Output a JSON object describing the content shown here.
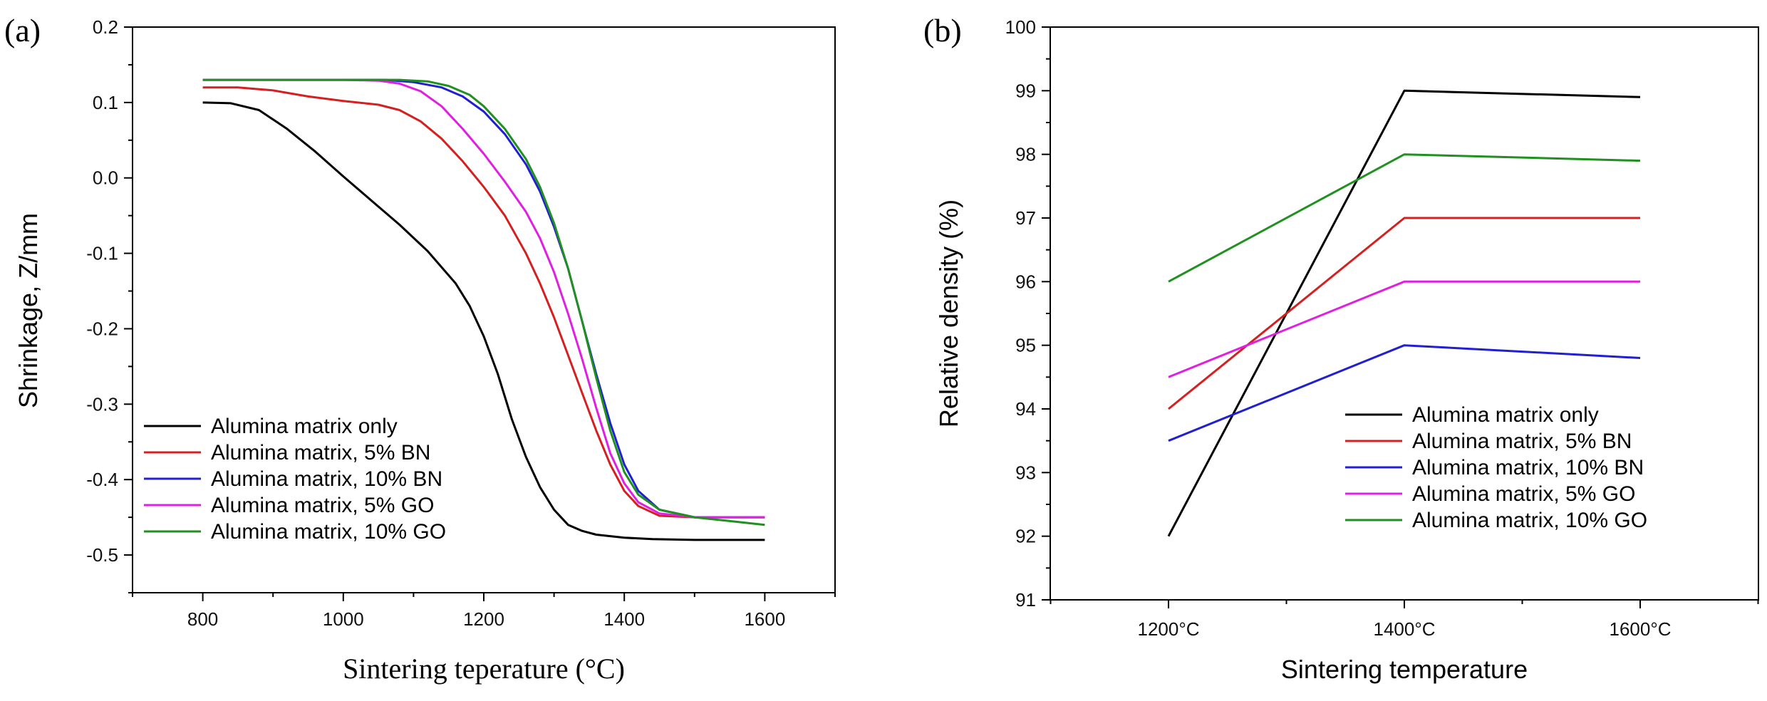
{
  "chart_data": [
    {
      "panel_label": "(a)",
      "type": "line",
      "xlabel": "Sintering teperature (°C)",
      "ylabel": "Shrinkage, Z/mm",
      "xlim": [
        700,
        1700
      ],
      "ylim": [
        -0.55,
        0.2
      ],
      "xticks": [
        800,
        1000,
        1200,
        1400,
        1600
      ],
      "yticks": [
        -0.5,
        -0.4,
        -0.3,
        -0.2,
        -0.1,
        0.0,
        0.1,
        0.2
      ],
      "grid": false,
      "legend_position": "bottom-left",
      "series": [
        {
          "name": "Alumina matrix only",
          "color": "#000000",
          "x": [
            800,
            840,
            880,
            920,
            960,
            1000,
            1040,
            1080,
            1120,
            1160,
            1180,
            1200,
            1220,
            1240,
            1260,
            1280,
            1300,
            1320,
            1340,
            1360,
            1400,
            1440,
            1500,
            1600
          ],
          "y": [
            0.1,
            0.099,
            0.09,
            0.065,
            0.035,
            0.002,
            -0.03,
            -0.062,
            -0.097,
            -0.14,
            -0.17,
            -0.21,
            -0.26,
            -0.32,
            -0.37,
            -0.41,
            -0.44,
            -0.46,
            -0.468,
            -0.473,
            -0.477,
            -0.479,
            -0.48,
            -0.48
          ]
        },
        {
          "name": "Alumina matrix, 5% BN",
          "color": "#d42020",
          "x": [
            800,
            850,
            900,
            950,
            1000,
            1050,
            1080,
            1110,
            1140,
            1170,
            1200,
            1230,
            1260,
            1280,
            1300,
            1320,
            1340,
            1360,
            1380,
            1400,
            1420,
            1450,
            1500,
            1600
          ],
          "y": [
            0.12,
            0.12,
            0.116,
            0.108,
            0.102,
            0.097,
            0.09,
            0.075,
            0.052,
            0.022,
            -0.012,
            -0.05,
            -0.1,
            -0.14,
            -0.185,
            -0.235,
            -0.285,
            -0.335,
            -0.38,
            -0.415,
            -0.435,
            -0.448,
            -0.45,
            -0.45
          ]
        },
        {
          "name": "Alumina matrix, 10% BN",
          "color": "#2020d0",
          "x": [
            800,
            900,
            1000,
            1060,
            1100,
            1140,
            1170,
            1200,
            1230,
            1260,
            1280,
            1300,
            1320,
            1340,
            1360,
            1380,
            1400,
            1420,
            1450,
            1500,
            1600
          ],
          "y": [
            0.13,
            0.13,
            0.13,
            0.13,
            0.127,
            0.12,
            0.108,
            0.088,
            0.058,
            0.018,
            -0.018,
            -0.065,
            -0.12,
            -0.19,
            -0.26,
            -0.325,
            -0.38,
            -0.415,
            -0.44,
            -0.45,
            -0.45
          ]
        },
        {
          "name": "Alumina matrix, 5% GO",
          "color": "#e020e0",
          "x": [
            800,
            900,
            1000,
            1050,
            1080,
            1110,
            1140,
            1170,
            1200,
            1230,
            1260,
            1280,
            1300,
            1320,
            1340,
            1360,
            1380,
            1400,
            1420,
            1450,
            1500,
            1600
          ],
          "y": [
            0.13,
            0.13,
            0.13,
            0.129,
            0.125,
            0.115,
            0.095,
            0.065,
            0.032,
            -0.005,
            -0.045,
            -0.08,
            -0.125,
            -0.18,
            -0.24,
            -0.305,
            -0.365,
            -0.405,
            -0.43,
            -0.445,
            -0.45,
            -0.45
          ]
        },
        {
          "name": "Alumina matrix, 10% GO",
          "color": "#209020",
          "x": [
            800,
            900,
            1000,
            1080,
            1120,
            1150,
            1180,
            1200,
            1230,
            1260,
            1280,
            1300,
            1320,
            1340,
            1360,
            1380,
            1400,
            1420,
            1450,
            1500,
            1550,
            1600
          ],
          "y": [
            0.13,
            0.13,
            0.13,
            0.13,
            0.128,
            0.122,
            0.11,
            0.095,
            0.065,
            0.025,
            -0.012,
            -0.06,
            -0.12,
            -0.19,
            -0.265,
            -0.335,
            -0.39,
            -0.42,
            -0.44,
            -0.45,
            -0.455,
            -0.46
          ]
        }
      ]
    },
    {
      "panel_label": "(b)",
      "type": "line",
      "xlabel": "Sintering temperature",
      "ylabel": "Relative density (%)",
      "categories": [
        "1200°C",
        "1400°C",
        "1600°C"
      ],
      "ylim": [
        91,
        100
      ],
      "yticks": [
        91,
        92,
        93,
        94,
        95,
        96,
        97,
        98,
        99,
        100
      ],
      "grid": false,
      "legend_position": "bottom-right",
      "series": [
        {
          "name": "Alumina matrix only",
          "color": "#000000",
          "values": [
            92,
            99,
            98.9
          ]
        },
        {
          "name": "Alumina matrix, 5% BN",
          "color": "#d42020",
          "values": [
            94,
            97,
            97
          ]
        },
        {
          "name": "Alumina matrix, 10% BN",
          "color": "#2020d0",
          "values": [
            93.5,
            95,
            94.8
          ]
        },
        {
          "name": "Alumina matrix, 5% GO",
          "color": "#e020e0",
          "values": [
            94.5,
            96,
            96
          ]
        },
        {
          "name": "Alumina matrix, 10% GO",
          "color": "#209020",
          "values": [
            96,
            98,
            97.9
          ]
        }
      ]
    }
  ]
}
